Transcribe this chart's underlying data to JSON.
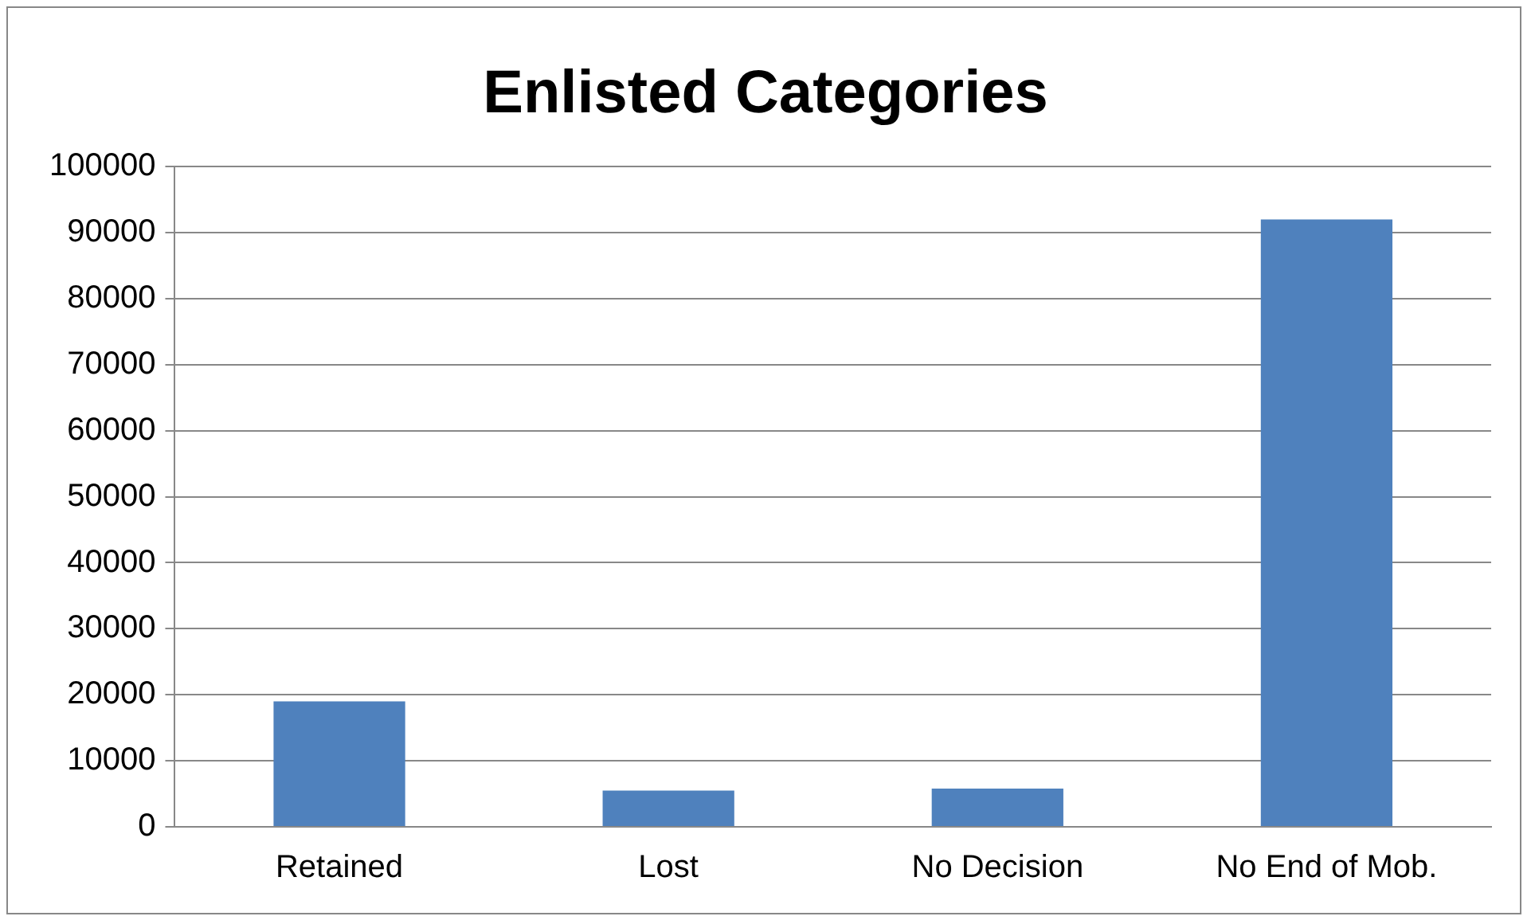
{
  "chart_data": {
    "type": "bar",
    "title": "Enlisted Categories",
    "categories": [
      "Retained",
      "Lost",
      "No Decision",
      "No End of Mob."
    ],
    "values": [
      19000,
      5500,
      5800,
      92000
    ],
    "color": "#4f81bd",
    "ylim": [
      0,
      100000
    ],
    "yticks": [
      0,
      10000,
      20000,
      30000,
      40000,
      50000,
      60000,
      70000,
      80000,
      90000,
      100000
    ],
    "grid": "y",
    "legend": false
  }
}
